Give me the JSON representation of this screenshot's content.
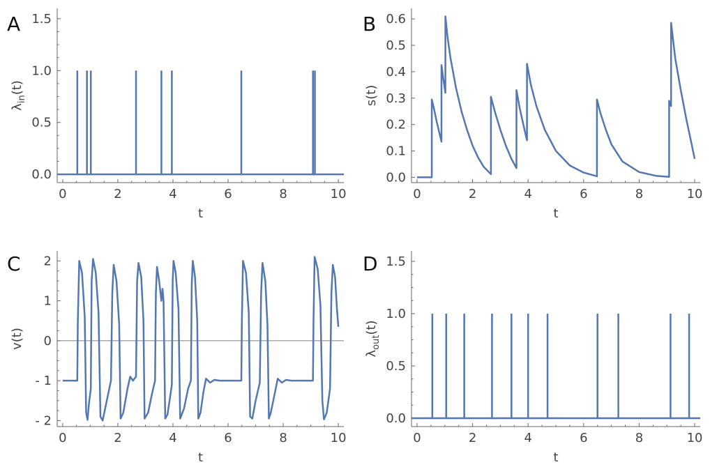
{
  "color": "#5277b3",
  "chart_data": [
    {
      "panel": "A",
      "type": "line",
      "xlabel": "t",
      "ylabel": "λin(t)",
      "ylabel_main": "λ",
      "ylabel_sub": "in",
      "ylabel_tail": "(t)",
      "xlim": [
        -0.2,
        10.2
      ],
      "ylim": [
        -0.08,
        1.6
      ],
      "xticks": [
        0,
        2,
        4,
        6,
        8,
        10
      ],
      "xtick_labels": [
        "0",
        "2",
        "4",
        "6",
        "8",
        "10"
      ],
      "yticks": [
        0.0,
        0.5,
        1.0,
        1.5
      ],
      "ytick_labels": [
        "0.0",
        "0.5",
        "1.0",
        "1.5"
      ],
      "baseline": 0,
      "spike_height": 1.0,
      "spikes": [
        0.53,
        0.88,
        1.02,
        2.66,
        3.58,
        3.96,
        6.48,
        9.08,
        9.15
      ]
    },
    {
      "panel": "B",
      "type": "line",
      "xlabel": "t",
      "ylabel": "s(t)",
      "xlim": [
        -0.2,
        10.2
      ],
      "ylim": [
        -0.02,
        0.64
      ],
      "xticks": [
        0,
        2,
        4,
        6,
        8,
        10
      ],
      "xtick_labels": [
        "0",
        "2",
        "4",
        "6",
        "8",
        "10"
      ],
      "yticks": [
        0.0,
        0.1,
        0.2,
        0.3,
        0.4,
        0.5,
        0.6
      ],
      "ytick_labels": [
        "0.0",
        "0.1",
        "0.2",
        "0.3",
        "0.4",
        "0.5",
        "0.6"
      ],
      "points": [
        [
          0,
          0
        ],
        [
          0.53,
          0
        ],
        [
          0.53,
          0.295
        ],
        [
          0.6,
          0.265
        ],
        [
          0.7,
          0.215
        ],
        [
          0.8,
          0.17
        ],
        [
          0.88,
          0.135
        ],
        [
          0.88,
          0.425
        ],
        [
          0.95,
          0.37
        ],
        [
          1.02,
          0.32
        ],
        [
          1.02,
          0.61
        ],
        [
          1.1,
          0.53
        ],
        [
          1.2,
          0.455
        ],
        [
          1.4,
          0.34
        ],
        [
          1.6,
          0.25
        ],
        [
          1.8,
          0.18
        ],
        [
          2.0,
          0.12
        ],
        [
          2.2,
          0.075
        ],
        [
          2.4,
          0.04
        ],
        [
          2.66,
          0.012
        ],
        [
          2.66,
          0.305
        ],
        [
          2.8,
          0.25
        ],
        [
          3.0,
          0.18
        ],
        [
          3.2,
          0.12
        ],
        [
          3.4,
          0.07
        ],
        [
          3.58,
          0.035
        ],
        [
          3.58,
          0.33
        ],
        [
          3.7,
          0.26
        ],
        [
          3.85,
          0.19
        ],
        [
          3.96,
          0.14
        ],
        [
          3.96,
          0.43
        ],
        [
          4.1,
          0.35
        ],
        [
          4.3,
          0.27
        ],
        [
          4.6,
          0.18
        ],
        [
          5.0,
          0.1
        ],
        [
          5.5,
          0.045
        ],
        [
          6.0,
          0.018
        ],
        [
          6.48,
          0.004
        ],
        [
          6.48,
          0.295
        ],
        [
          6.6,
          0.245
        ],
        [
          6.8,
          0.18
        ],
        [
          7.0,
          0.125
        ],
        [
          7.4,
          0.06
        ],
        [
          8.0,
          0.02
        ],
        [
          8.6,
          0.006
        ],
        [
          9.08,
          0.002
        ],
        [
          9.08,
          0.29
        ],
        [
          9.1,
          0.28
        ],
        [
          9.15,
          0.27
        ],
        [
          9.15,
          0.585
        ],
        [
          9.3,
          0.45
        ],
        [
          9.5,
          0.33
        ],
        [
          9.7,
          0.22
        ],
        [
          9.9,
          0.12
        ],
        [
          10.0,
          0.07
        ]
      ]
    },
    {
      "panel": "C",
      "type": "line",
      "xlabel": "t",
      "ylabel": "v(t)",
      "xlim": [
        -0.2,
        10.2
      ],
      "ylim": [
        -2.15,
        2.25
      ],
      "xticks": [
        0,
        2,
        4,
        6,
        8,
        10
      ],
      "xtick_labels": [
        "0",
        "2",
        "4",
        "6",
        "8",
        "10"
      ],
      "yticks": [
        -2,
        -1,
        0,
        1,
        2
      ],
      "ytick_labels": [
        "- 2",
        "- 1",
        "0",
        "1",
        "2"
      ],
      "zero_line": 0,
      "points": [
        [
          0,
          -1
        ],
        [
          0.53,
          -1
        ],
        [
          0.55,
          0.5
        ],
        [
          0.6,
          2.0
        ],
        [
          0.7,
          1.7
        ],
        [
          0.8,
          0.6
        ],
        [
          0.85,
          -1.8
        ],
        [
          0.9,
          -1.98
        ],
        [
          0.95,
          -1.6
        ],
        [
          1.02,
          -1.2
        ],
        [
          1.05,
          1.5
        ],
        [
          1.1,
          2.05
        ],
        [
          1.2,
          1.7
        ],
        [
          1.3,
          0.7
        ],
        [
          1.37,
          -1.9
        ],
        [
          1.45,
          -2.0
        ],
        [
          1.6,
          -1.5
        ],
        [
          1.75,
          -1.0
        ],
        [
          1.8,
          1.2
        ],
        [
          1.85,
          1.9
        ],
        [
          1.95,
          1.5
        ],
        [
          2.05,
          0.4
        ],
        [
          2.1,
          -1.95
        ],
        [
          2.2,
          -1.8
        ],
        [
          2.35,
          -1.2
        ],
        [
          2.45,
          -0.9
        ],
        [
          2.55,
          -1.0
        ],
        [
          2.6,
          -0.95
        ],
        [
          2.66,
          -0.9
        ],
        [
          2.7,
          1.5
        ],
        [
          2.75,
          1.95
        ],
        [
          2.85,
          1.6
        ],
        [
          2.93,
          0.5
        ],
        [
          2.97,
          -1.95
        ],
        [
          3.1,
          -1.8
        ],
        [
          3.25,
          -1.3
        ],
        [
          3.35,
          -1.0
        ],
        [
          3.38,
          1.2
        ],
        [
          3.42,
          1.85
        ],
        [
          3.5,
          1.5
        ],
        [
          3.58,
          1.0
        ],
        [
          3.62,
          1.3
        ],
        [
          3.66,
          1.0
        ],
        [
          3.72,
          -1.95
        ],
        [
          3.8,
          -1.85
        ],
        [
          3.92,
          -1.3
        ],
        [
          3.96,
          -1.1
        ],
        [
          3.99,
          1.5
        ],
        [
          4.02,
          2.0
        ],
        [
          4.1,
          1.7
        ],
        [
          4.2,
          0.8
        ],
        [
          4.26,
          -1.95
        ],
        [
          4.4,
          -1.7
        ],
        [
          4.55,
          -1.2
        ],
        [
          4.65,
          -1.0
        ],
        [
          4.68,
          1.4
        ],
        [
          4.72,
          2.0
        ],
        [
          4.8,
          1.6
        ],
        [
          4.88,
          0.5
        ],
        [
          4.92,
          -1.95
        ],
        [
          5.0,
          -1.8
        ],
        [
          5.1,
          -1.3
        ],
        [
          5.2,
          -0.95
        ],
        [
          5.35,
          -1.05
        ],
        [
          5.5,
          -0.98
        ],
        [
          5.7,
          -1.0
        ],
        [
          6.48,
          -1.0
        ],
        [
          6.5,
          0.5
        ],
        [
          6.54,
          2.0
        ],
        [
          6.65,
          1.7
        ],
        [
          6.75,
          0.7
        ],
        [
          6.8,
          -1.9
        ],
        [
          6.88,
          -1.95
        ],
        [
          7.0,
          -1.5
        ],
        [
          7.15,
          -1.05
        ],
        [
          7.2,
          1.2
        ],
        [
          7.25,
          1.95
        ],
        [
          7.35,
          1.5
        ],
        [
          7.43,
          0.4
        ],
        [
          7.48,
          -1.95
        ],
        [
          7.55,
          -1.8
        ],
        [
          7.7,
          -1.3
        ],
        [
          7.8,
          -0.95
        ],
        [
          7.95,
          -1.05
        ],
        [
          8.1,
          -0.98
        ],
        [
          8.3,
          -1.0
        ],
        [
          9.08,
          -1.0
        ],
        [
          9.1,
          0.5
        ],
        [
          9.14,
          2.1
        ],
        [
          9.25,
          1.8
        ],
        [
          9.35,
          0.9
        ],
        [
          9.42,
          -1.5
        ],
        [
          9.48,
          -1.97
        ],
        [
          9.58,
          -1.8
        ],
        [
          9.7,
          -1.2
        ],
        [
          9.75,
          1.2
        ],
        [
          9.8,
          1.9
        ],
        [
          9.88,
          1.6
        ],
        [
          9.95,
          0.8
        ],
        [
          10.0,
          0.35
        ]
      ]
    },
    {
      "panel": "D",
      "type": "line",
      "xlabel": "t",
      "ylabel": "λout(t)",
      "ylabel_main": "λ",
      "ylabel_sub": "out",
      "ylabel_tail": "(t)",
      "xlim": [
        -0.2,
        10.2
      ],
      "ylim": [
        -0.08,
        1.6
      ],
      "xticks": [
        0,
        2,
        4,
        6,
        8,
        10
      ],
      "xtick_labels": [
        "0",
        "2",
        "4",
        "6",
        "8",
        "10"
      ],
      "yticks": [
        0.0,
        0.5,
        1.0,
        1.5
      ],
      "ytick_labels": [
        "0.0",
        "0.5",
        "1.0",
        "1.5"
      ],
      "baseline": 0,
      "spike_height": 1.0,
      "spikes": [
        0.55,
        1.05,
        1.7,
        2.7,
        3.4,
        4.0,
        4.7,
        6.5,
        7.25,
        9.13,
        9.8
      ]
    }
  ]
}
